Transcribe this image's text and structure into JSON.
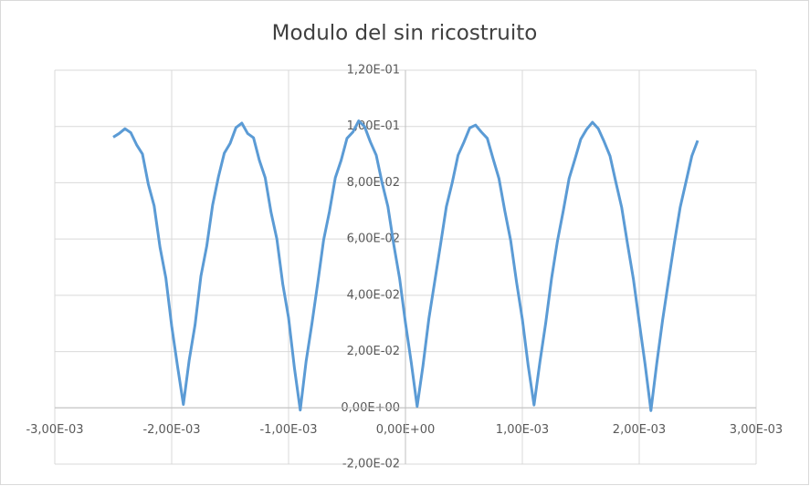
{
  "chart_data": {
    "type": "line",
    "title": "Modulo del sin ricostruito",
    "color": "#5b9bd5",
    "grid": true,
    "xlim": [
      -0.003,
      0.003
    ],
    "xticks": [
      {
        "value": -0.003,
        "label": "-3,00E-03"
      },
      {
        "value": -0.002,
        "label": "-2,00E-03"
      },
      {
        "value": -0.001,
        "label": "-1,00E-03"
      },
      {
        "value": 0,
        "label": "0,00E+00"
      },
      {
        "value": 0.001,
        "label": "1,00E-03"
      },
      {
        "value": 0.002,
        "label": "2,00E-03"
      },
      {
        "value": 0.003,
        "label": "3,00E-03"
      }
    ],
    "ylim": [
      -0.02,
      0.12
    ],
    "yticks": [
      {
        "value": -0.02,
        "label": "-2,00E-02"
      },
      {
        "value": 0,
        "label": "0,00E+00"
      },
      {
        "value": 0.02,
        "label": "2,00E-02"
      },
      {
        "value": 0.04,
        "label": "4,00E-02"
      },
      {
        "value": 0.06,
        "label": "6,00E-02"
      },
      {
        "value": 0.08,
        "label": "8,00E-02"
      },
      {
        "value": 0.1,
        "label": "1,00E-01"
      },
      {
        "value": 0.12,
        "label": "1,20E-01"
      }
    ],
    "x": [
      -0.0025,
      -0.00245,
      -0.0024,
      -0.00235,
      -0.0023,
      -0.00225,
      -0.0022,
      -0.00215,
      -0.0021,
      -0.00205,
      -0.002,
      -0.00195,
      -0.0019,
      -0.00185,
      -0.0018,
      -0.00175,
      -0.0017,
      -0.00165,
      -0.0016,
      -0.00155,
      -0.0015,
      -0.00145,
      -0.0014,
      -0.00135,
      -0.0013,
      -0.00125,
      -0.0012,
      -0.00115,
      -0.0011,
      -0.00105,
      -0.001,
      -0.00095,
      -0.0009,
      -0.00085,
      -0.0008,
      -0.00075,
      -0.0007,
      -0.00065,
      -0.0006,
      -0.00055,
      -0.0005,
      -0.00045,
      -0.0004,
      -0.00035,
      -0.0003,
      -0.00025,
      -0.0002,
      -0.00015,
      -0.0001,
      -5e-05,
      0,
      5e-05,
      0.0001,
      0.00015,
      0.0002,
      0.00025,
      0.0003,
      0.00035,
      0.0004,
      0.00045,
      0.0005,
      0.00055,
      0.0006,
      0.00065,
      0.0007,
      0.00075,
      0.0008,
      0.00085,
      0.0009,
      0.00095,
      0.001,
      0.00105,
      0.0011,
      0.00115,
      0.0012,
      0.00125,
      0.0013,
      0.00135,
      0.0014,
      0.00145,
      0.0015,
      0.00155,
      0.0016,
      0.00165,
      0.0017,
      0.00175,
      0.0018,
      0.00185,
      0.0019,
      0.00195,
      0.002,
      0.00205,
      0.0021,
      0.00215,
      0.0022,
      0.00225,
      0.0023,
      0.00235,
      0.0024,
      0.00245,
      0.0025
    ],
    "values": [
      0.0962,
      0.0975,
      0.0992,
      0.0978,
      0.0935,
      0.0902,
      0.0795,
      0.0718,
      0.0571,
      0.0462,
      0.0291,
      0.0148,
      0.0012,
      0.017,
      0.0295,
      0.0468,
      0.0575,
      0.072,
      0.0821,
      0.0905,
      0.094,
      0.0996,
      0.1012,
      0.0975,
      0.096,
      0.088,
      0.0818,
      0.0695,
      0.06,
      0.0441,
      0.032,
      0.0142,
      -0.0008,
      0.0165,
      0.03,
      0.0445,
      0.0597,
      0.0698,
      0.0818,
      0.088,
      0.0958,
      0.098,
      0.102,
      0.1,
      0.0945,
      0.0898,
      0.08,
      0.0715,
      0.058,
      0.046,
      0.0302,
      0.016,
      0.0005,
      0.015,
      0.0316,
      0.0448,
      0.058,
      0.0715,
      0.08,
      0.0898,
      0.0944,
      0.0995,
      0.1005,
      0.098,
      0.0958,
      0.0885,
      0.0815,
      0.07,
      0.0595,
      0.0448,
      0.0315,
      0.015,
      0.001,
      0.0162,
      0.0302,
      0.046,
      0.0592,
      0.07,
      0.0815,
      0.0884,
      0.0955,
      0.099,
      0.1015,
      0.0992,
      0.0946,
      0.0895,
      0.0802,
      0.0712,
      0.0582,
      0.0458,
      0.0305,
      0.0155,
      -0.001,
      0.0158,
      0.0312,
      0.045,
      0.0585,
      0.0712,
      0.0803,
      0.0895,
      0.095
    ]
  }
}
